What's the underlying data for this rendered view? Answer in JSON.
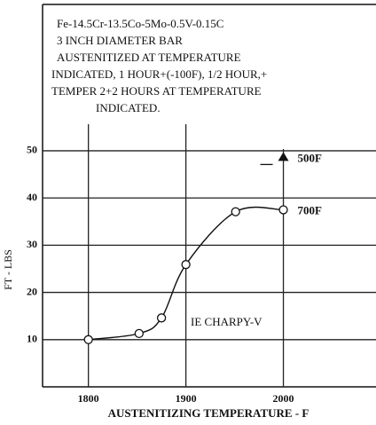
{
  "chart_data": {
    "type": "line",
    "annotations": [
      "Fe-14.5Cr-13.5Co-5Mo-0.5V-0.15C",
      "3 INCH DIAMETER BAR",
      "AUSTENITIZED AT TEMPERATURE",
      "INDICATED, 1 HOUR+(-100F), 1/2 HOUR,+",
      "TEMPER 2+2 HOURS AT TEMPERATURE",
      "INDICATED."
    ],
    "note": "IE CHARPY-V",
    "x_label": "AUSTENITIZING TEMPERATURE - F",
    "y_label": "FT - LBS",
    "series": [
      {
        "name": "700F",
        "color": "#111111",
        "marker": "open-circle",
        "x": [
          1800,
          1852,
          1875,
          1900,
          1951,
          2000
        ],
        "values": [
          10,
          11.3,
          14.6,
          25.9,
          37.1,
          37.5
        ]
      },
      {
        "name": "500F",
        "color": "#111111",
        "marker": "filled-triangle",
        "x": [
          2000
        ],
        "values": [
          48.6
        ]
      }
    ],
    "xlim": [
      1753,
      2095
    ],
    "ylim": [
      0,
      81
    ],
    "xticks": [
      1800,
      1900,
      2000
    ],
    "yticks": [
      10,
      20,
      30,
      40,
      50
    ],
    "grid": true
  }
}
